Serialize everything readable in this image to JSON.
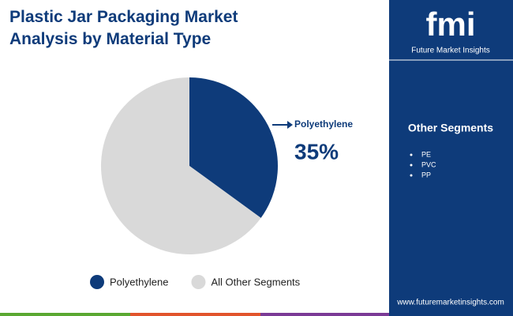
{
  "chart_data": {
    "type": "pie",
    "title": "Plastic Jar Packaging Market Analysis by Material Type",
    "categories": [
      "Polyethylene",
      "All Other Segments"
    ],
    "values": [
      35,
      65
    ],
    "value_labels": [
      "35%",
      null
    ],
    "colors": [
      "#0e3b7a",
      "#d9d9d9"
    ],
    "legend": "bottom"
  },
  "side_panel": {
    "heading": "Other Segments",
    "items": [
      "PE",
      "PVC",
      "PP"
    ]
  },
  "logo": {
    "mark": "fmi",
    "name": "Future Market Insights"
  },
  "footer": {
    "url": "www.futuremarketinsights.com"
  }
}
